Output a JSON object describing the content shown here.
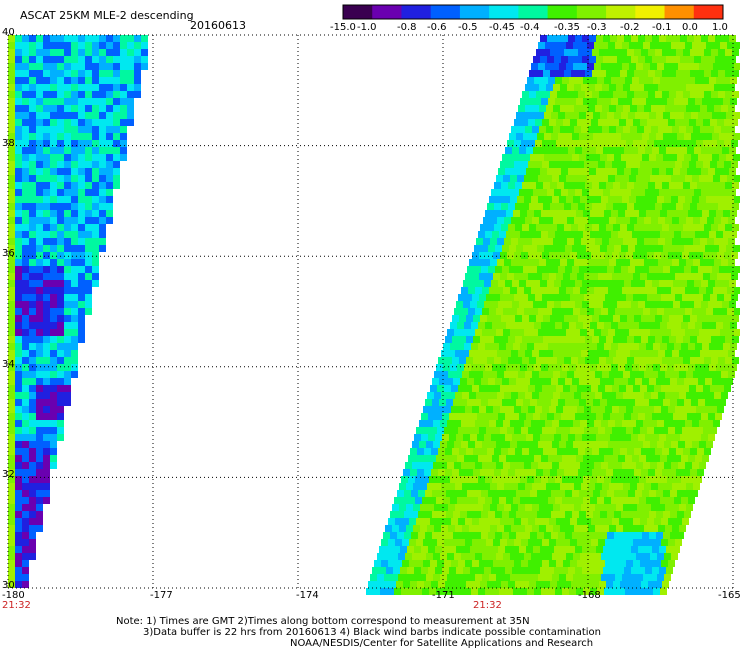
{
  "header": {
    "title": "ASCAT 25KM MLE-2 descending",
    "date": "20160613"
  },
  "colorbar": {
    "labels": [
      "-15.0",
      "-1.0",
      "-0.8",
      "-0.6",
      "-0.5",
      "-0.45",
      "-0.4",
      "-0.35",
      "-0.3",
      "-0.2",
      "-0.1",
      "0.0",
      "1.0"
    ],
    "colors": [
      "#3a0050",
      "#6a00b0",
      "#2020e0",
      "#0060ff",
      "#00b0ff",
      "#00e8f0",
      "#00f8a0",
      "#40f000",
      "#80f000",
      "#c0f000",
      "#f0f000",
      "#ff9000",
      "#ff3010"
    ]
  },
  "map": {
    "lon_range": [
      -180,
      -165
    ],
    "lat_range": [
      30,
      40
    ],
    "x_ticks": [
      "-180",
      "-177",
      "-174",
      "-171",
      "-168",
      "-165"
    ],
    "y_ticks": [
      "40",
      "38",
      "36",
      "34",
      "32",
      "30"
    ],
    "swath_times": [
      "21:32",
      "21:32"
    ]
  },
  "footer": {
    "line1": "Note: 1) Times are GMT 2)Times along bottom correspond to measurement at 35N",
    "line2": "3)Data buffer is 22 hrs from 20160613 4) Black wind barbs indicate possible contamination",
    "line3": "NOAA/NESDIS/Center for Satellite Applications and Research"
  }
}
